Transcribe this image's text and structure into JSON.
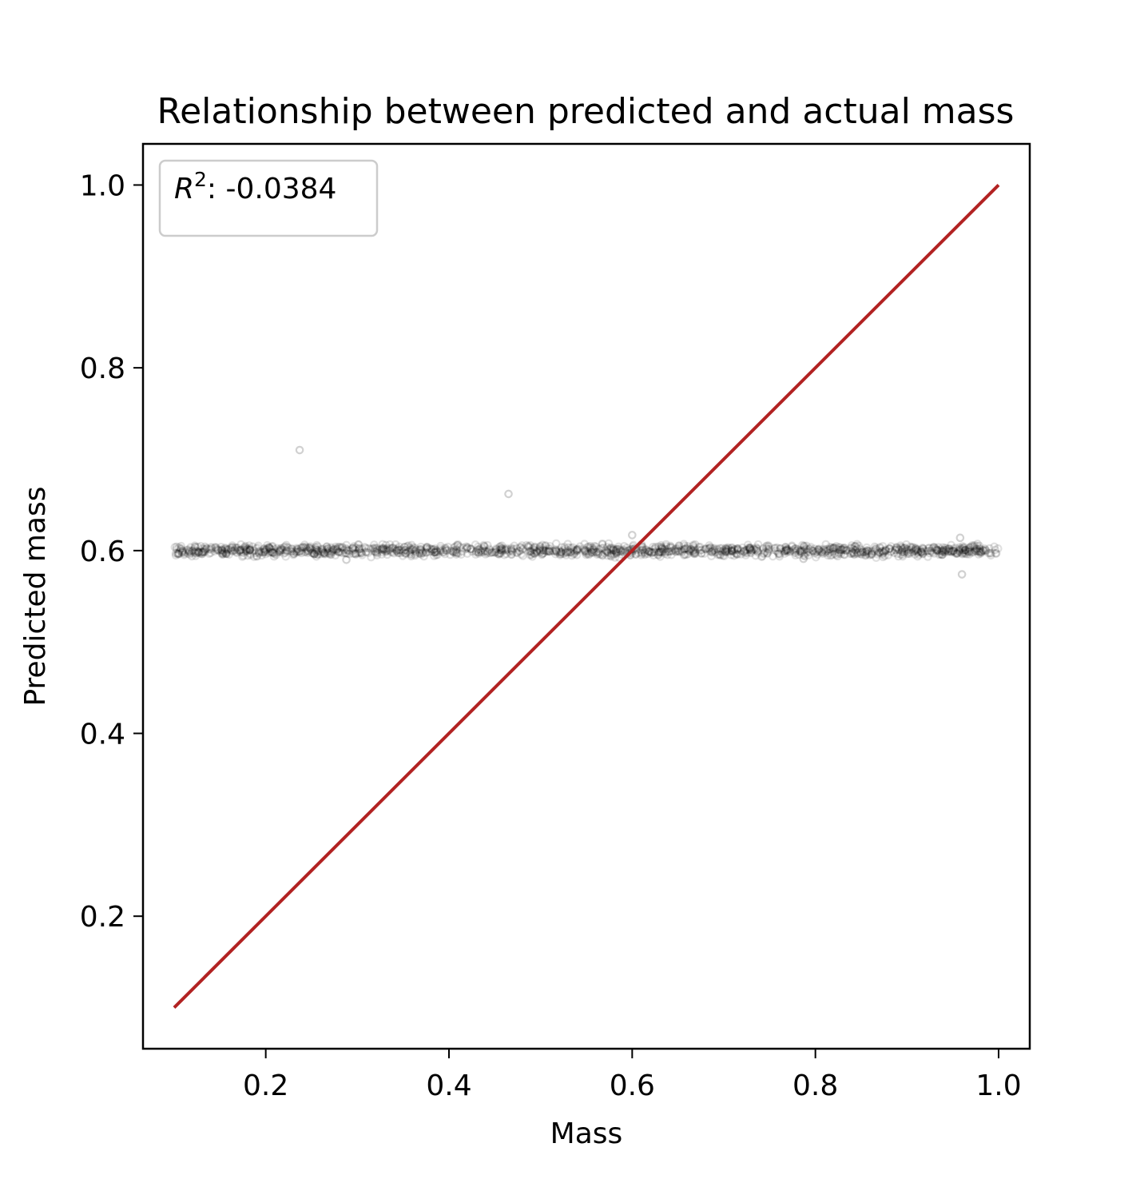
{
  "chart_data": {
    "type": "scatter",
    "title": "Relationship between predicted and actual mass",
    "xlabel": "Mass",
    "ylabel": "Predicted mass",
    "xlim": [
      0.066,
      1.034
    ],
    "ylim": [
      0.055,
      1.045
    ],
    "xticks": [
      0.2,
      0.4,
      0.6,
      0.8,
      1.0
    ],
    "xtick_labels": [
      "0.2",
      "0.4",
      "0.6",
      "0.8",
      "1.0"
    ],
    "yticks": [
      0.2,
      0.4,
      0.6,
      0.8,
      1.0
    ],
    "ytick_labels": [
      "0.2",
      "0.4",
      "0.6",
      "0.8",
      "1.0"
    ],
    "grid": false,
    "legend": {
      "position": "top-left",
      "label_prefix": "R",
      "label_sup": "2",
      "label_value": ": -0.0384"
    },
    "points_summary": {
      "x_min": 0.1,
      "x_max": 1.0,
      "predicted_center": 0.6,
      "predicted_spread": 0.006
    },
    "outliers": [
      {
        "x": 0.237,
        "y": 0.71
      },
      {
        "x": 0.465,
        "y": 0.662
      },
      {
        "x": 0.6,
        "y": 0.617
      },
      {
        "x": 0.958,
        "y": 0.614
      },
      {
        "x": 0.96,
        "y": 0.574
      },
      {
        "x": 0.288,
        "y": 0.59
      },
      {
        "x": 0.787,
        "y": 0.591
      }
    ],
    "reference_line": {
      "x": [
        0.1,
        1.0
      ],
      "y": [
        0.1,
        1.0
      ],
      "color": "#b22222"
    },
    "point_color": "#000000"
  }
}
